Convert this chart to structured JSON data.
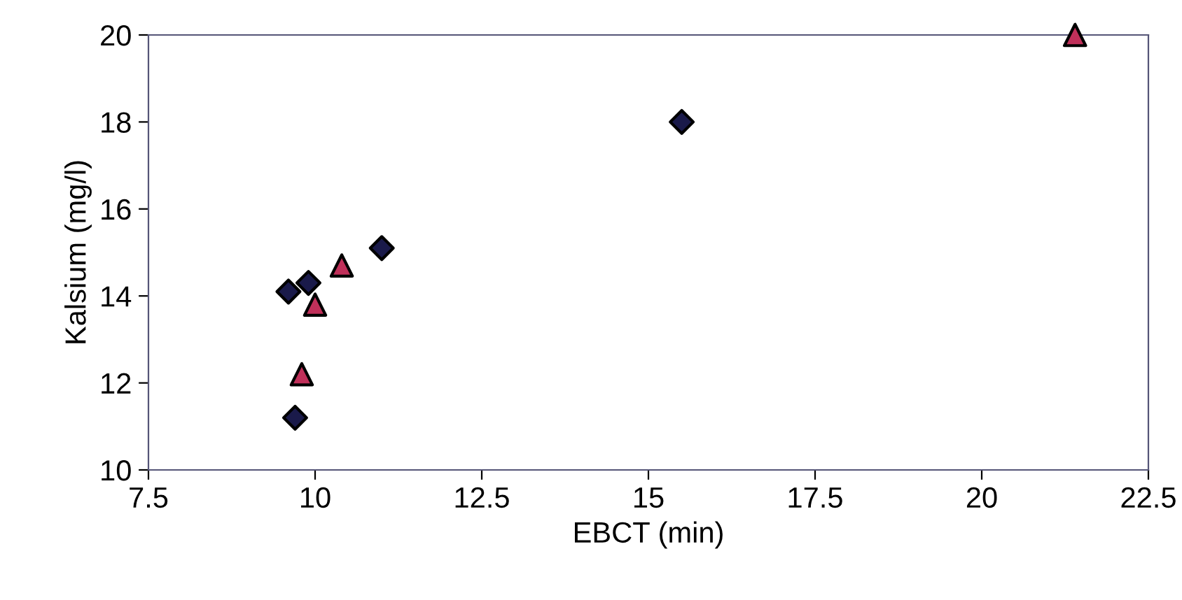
{
  "chart_data": {
    "type": "scatter",
    "xlabel": "EBCT (min)",
    "ylabel": "Kalsium (mg/l)",
    "xlim": [
      7.5,
      22.5
    ],
    "xticks": [
      7.5,
      10,
      12.5,
      15,
      17.5,
      20,
      22.5
    ],
    "ylim": [
      10,
      20
    ],
    "yticks": [
      10,
      12,
      14,
      16,
      18,
      20
    ],
    "grid": false,
    "legend": false,
    "series": [
      {
        "color": "#1a1a4a",
        "marker": "diamond",
        "x": [
          9.6,
          9.9,
          9.7,
          11.0,
          15.5
        ],
        "values": [
          14.1,
          14.3,
          11.2,
          15.1,
          18.0
        ]
      },
      {
        "color": "#c0305a",
        "marker": "triangle",
        "x": [
          10.4,
          10.0,
          9.8,
          21.4
        ],
        "values": [
          14.7,
          13.8,
          12.2,
          20.0
        ]
      }
    ]
  }
}
